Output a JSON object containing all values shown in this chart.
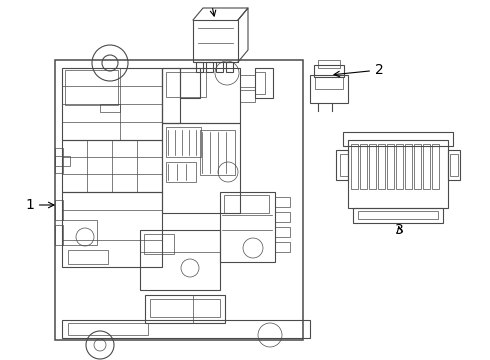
{
  "bg_color": "#ffffff",
  "line_color": "#4a4a4a",
  "label_color": "#000000",
  "lw_main": 1.1,
  "lw_med": 0.8,
  "lw_thin": 0.5,
  "figsize": [
    4.9,
    3.6
  ],
  "dpi": 100
}
